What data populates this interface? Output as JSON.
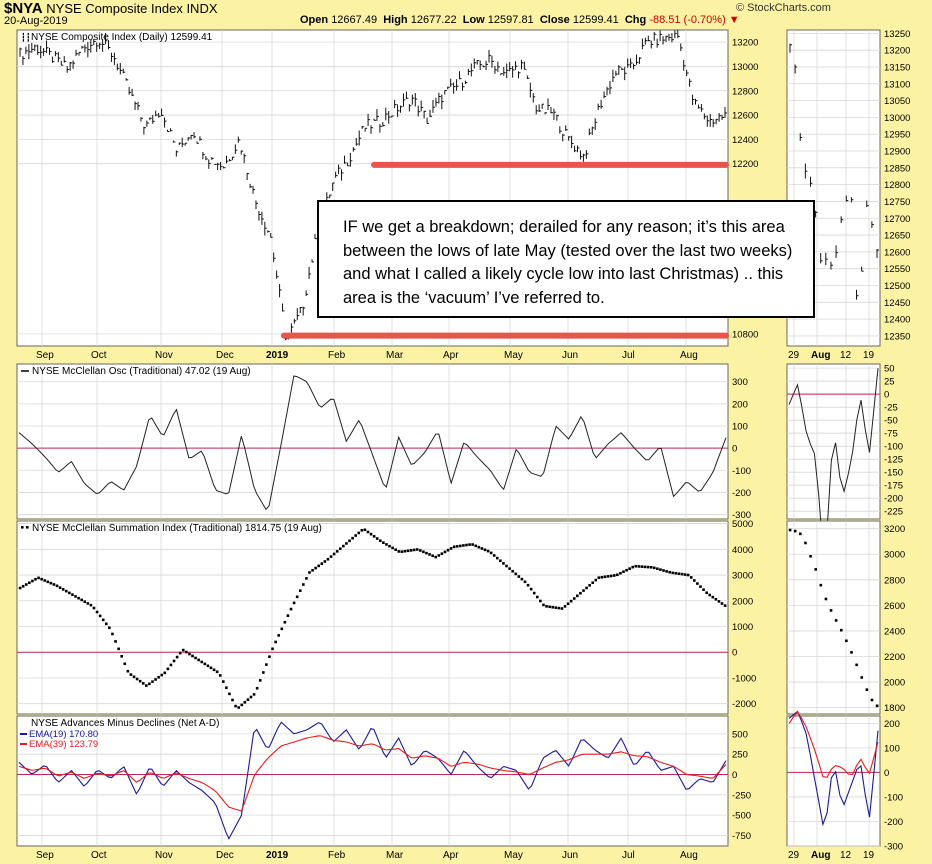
{
  "header": {
    "symbol": "$NYA",
    "name": "NYSE Composite Index INDX",
    "date": "20-Aug-2019",
    "open_label": "Open",
    "open": "12667.49",
    "high_label": "High",
    "high": "12677.22",
    "low_label": "Low",
    "low": "12597.81",
    "close_label": "Close",
    "close": "12599.41",
    "chg_label": "Chg",
    "chg": "-88.51 (-0.70%)",
    "source": "© StockCharts.com",
    "chg_color": "#cc0000"
  },
  "callout": {
    "text": "IF we get a breakdown; derailed for any reason; it’s this area between the lows of late May (tested over the last two weeks) and what I called a likely cycle low into last Christmas) .. this area is the ‘vacuum’ I’ve referred to."
  },
  "x_axis": {
    "main_labels": [
      "Sep",
      "Oct",
      "Nov",
      "Dec",
      "2019",
      "Feb",
      "Mar",
      "Apr",
      "May",
      "Jun",
      "Jul",
      "Aug"
    ],
    "zoom_labels": [
      "29",
      "Aug",
      "12",
      "19"
    ]
  },
  "chart_data": [
    {
      "type": "bar",
      "panel": "price",
      "title": "NYSE Composite Index (Daily) 12599.41",
      "style": "ohlc",
      "months": [
        "Aug",
        "Sep",
        "Oct",
        "Nov",
        "Dec",
        "2019",
        "Feb",
        "Mar",
        "Apr",
        "May",
        "Jun",
        "Jul",
        "Aug"
      ],
      "closes": [
        13100,
        13160,
        13080,
        12980,
        13150,
        13230,
        13080,
        12780,
        12500,
        12650,
        12300,
        12480,
        12250,
        12180,
        12400,
        11900,
        11600,
        10750,
        11000,
        11650,
        12050,
        12250,
        12500,
        12550,
        12650,
        12740,
        12560,
        12770,
        12850,
        12990,
        13050,
        12940,
        13010,
        12650,
        12620,
        12400,
        12260,
        12680,
        12950,
        12980,
        13200,
        13230,
        13250,
        12700,
        12550,
        12600
      ],
      "ylim": [
        10700,
        13300
      ],
      "yticks": [
        10800,
        12200,
        12400,
        12600,
        12800,
        13000,
        13200
      ],
      "support_lines": [
        12190,
        10785
      ],
      "line_color": "#e8554c"
    },
    {
      "type": "bar",
      "panel": "price-zoom",
      "style": "ohlc",
      "closes": [
        13200,
        13180,
        12950,
        12850,
        12820,
        12760,
        12600,
        12560,
        12620,
        12490,
        12660,
        12700,
        12800,
        12710,
        12380,
        12580,
        12740,
        12680,
        12600
      ],
      "ylim": [
        12320,
        13260
      ],
      "yticks": [
        12350,
        12400,
        12450,
        12500,
        12550,
        12600,
        12650,
        12700,
        12750,
        12800,
        12850,
        12900,
        12950,
        13000,
        13050,
        13100,
        13150,
        13200,
        13250
      ]
    },
    {
      "type": "line",
      "panel": "oscillator",
      "title": "NYSE McClellan Osc (Traditional) 47.02 (19 Aug)",
      "values": [
        70,
        20,
        -40,
        -110,
        -60,
        -160,
        -210,
        -150,
        -190,
        -80,
        150,
        50,
        180,
        -50,
        -10,
        -190,
        -210,
        60,
        -190,
        -290,
        10,
        330,
        300,
        180,
        230,
        30,
        130,
        -30,
        -190,
        50,
        -80,
        -20,
        80,
        -160,
        30,
        -40,
        -100,
        -190,
        0,
        -110,
        -130,
        100,
        40,
        150,
        -50,
        20,
        70,
        0,
        -60,
        10,
        -220,
        -150,
        -200,
        -110,
        47
      ],
      "ylim": [
        -320,
        380
      ],
      "yticks": [
        -300,
        -200,
        -100,
        0,
        100,
        200,
        300
      ]
    },
    {
      "type": "line",
      "panel": "oscillator-zoom",
      "values": [
        -20,
        20,
        -80,
        -120,
        -340,
        -60,
        -200,
        -130,
        0,
        -120,
        50
      ],
      "ylim": [
        -240,
        58
      ],
      "yticks": [
        -225,
        -200,
        -175,
        -150,
        -125,
        -100,
        -75,
        -50,
        -25,
        0,
        25,
        50
      ]
    },
    {
      "type": "scatter",
      "panel": "summation",
      "title": "NYSE McClellan Summation Index (Traditional) 1814.75 (19 Aug)",
      "values": [
        2500,
        2900,
        2600,
        2200,
        1800,
        900,
        -800,
        -1300,
        -800,
        100,
        -350,
        -800,
        -2200,
        -1600,
        200,
        1700,
        3100,
        3600,
        4200,
        4800,
        4300,
        3900,
        4000,
        3700,
        4100,
        4200,
        3900,
        3300,
        2700,
        1800,
        1700,
        2300,
        2900,
        3000,
        3350,
        3300,
        3100,
        3000,
        2300,
        1815
      ],
      "ylim": [
        -2400,
        5100
      ],
      "yticks": [
        -2000,
        -1000,
        0,
        1000,
        2000,
        3000,
        4000,
        5000
      ]
    },
    {
      "type": "scatter",
      "panel": "summation-zoom",
      "values": [
        3190,
        3180,
        3150,
        3020,
        2900,
        2750,
        2620,
        2520,
        2430,
        2330,
        2220,
        2100,
        1980,
        1870,
        1815
      ],
      "ylim": [
        1750,
        3260
      ],
      "yticks": [
        1800,
        2000,
        2200,
        2400,
        2600,
        2800,
        3000,
        3200
      ]
    },
    {
      "type": "line",
      "panel": "advance-decline",
      "title": "NYSE Advances Minus Declines (Net A-D)",
      "series": [
        {
          "name": "EMA(19) 170.80",
          "color": "#1a1a99",
          "values": [
            150,
            0,
            120,
            -100,
            50,
            -150,
            60,
            -50,
            100,
            -250,
            100,
            -150,
            50,
            -100,
            -200,
            -350,
            -800,
            -500,
            600,
            300,
            650,
            500,
            550,
            650,
            400,
            550,
            300,
            600,
            200,
            450,
            100,
            300,
            200,
            0,
            300,
            100,
            -50,
            100,
            50,
            -200,
            200,
            300,
            100,
            450,
            300,
            200,
            450,
            100,
            300,
            50,
            100,
            -200,
            -50,
            -100,
            171
          ]
        },
        {
          "name": "EMA(39) 123.79",
          "color": "#e61c1c",
          "values": [
            100,
            50,
            80,
            -20,
            30,
            -50,
            20,
            -20,
            50,
            -100,
            30,
            -50,
            20,
            -50,
            -100,
            -200,
            -400,
            -450,
            0,
            200,
            350,
            400,
            450,
            480,
            420,
            400,
            350,
            380,
            300,
            320,
            200,
            230,
            200,
            100,
            150,
            130,
            80,
            50,
            30,
            0,
            80,
            150,
            180,
            250,
            250,
            250,
            280,
            230,
            220,
            150,
            100,
            0,
            -20,
            -50,
            124
          ]
        }
      ],
      "ylim": [
        -880,
        720
      ],
      "yticks": [
        -750,
        -500,
        -250,
        0,
        250,
        500
      ]
    },
    {
      "type": "line",
      "panel": "advance-decline-zoom",
      "series": [
        {
          "name": "EMA(19)",
          "color": "#1a1a99",
          "values": [
            220,
            250,
            150,
            -50,
            -250,
            50,
            -150,
            -50,
            50,
            -200,
            170
          ]
        },
        {
          "name": "EMA(39)",
          "color": "#e61c1c",
          "values": [
            200,
            250,
            180,
            80,
            -40,
            30,
            20,
            -20,
            60,
            -10,
            124
          ]
        }
      ],
      "ylim": [
        -300,
        230
      ],
      "yticks": [
        -300,
        -200,
        -100,
        0,
        100,
        200
      ]
    }
  ]
}
